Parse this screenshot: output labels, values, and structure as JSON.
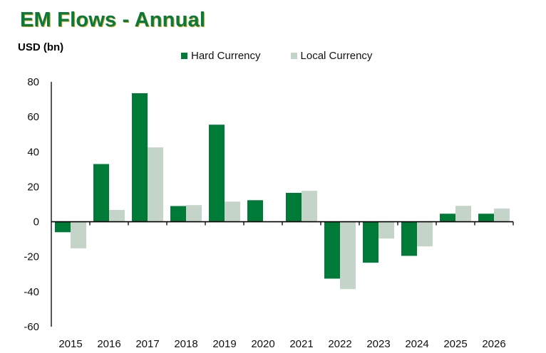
{
  "chart_data": {
    "type": "bar",
    "title": "EM Flows - Annual",
    "ylabel": "USD (bn)",
    "xlabel": "",
    "categories": [
      "2015",
      "2016",
      "2017",
      "2018",
      "2019",
      "2020",
      "2021",
      "2022",
      "2023",
      "2024",
      "2025",
      "2026"
    ],
    "series": [
      {
        "name": "Hard Currency",
        "color": "#007A37",
        "values": [
          -6,
          33,
          73.5,
          9,
          55.5,
          12.3,
          16.5,
          -32.5,
          -23.4,
          -19.5,
          4.6,
          4.6
        ]
      },
      {
        "name": "Local Currency",
        "color": "#C5D4C8",
        "values": [
          -15.2,
          6.8,
          42.5,
          9.5,
          11.5,
          0,
          17.7,
          -38.5,
          -9.6,
          -14.1,
          9.1,
          7.5
        ]
      }
    ],
    "ylim": [
      -60,
      80
    ],
    "yticks": [
      80,
      60,
      40,
      20,
      0,
      -20,
      -40,
      -60
    ],
    "grid": false,
    "legend_position": "top-center"
  }
}
